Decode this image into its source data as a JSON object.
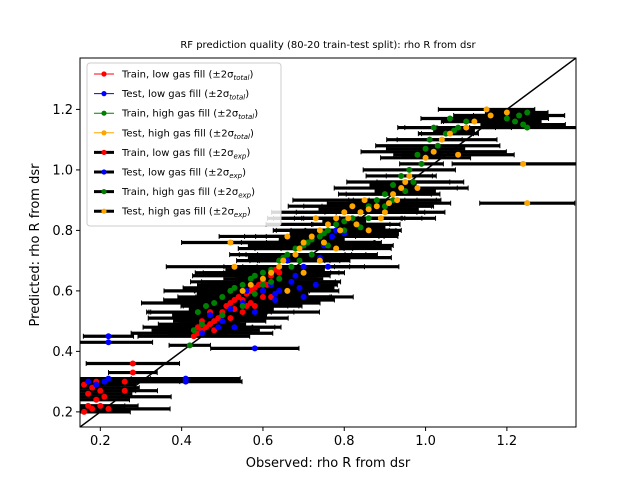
{
  "chart_data": {
    "type": "scatter",
    "title": "RF prediction quality (80-20 train-test split): rho R from dsr",
    "xlabel": "Observed: rho R from dsr",
    "ylabel": "Predicted: rho R from dsr",
    "xlim": [
      0.15,
      1.37
    ],
    "ylim": [
      0.15,
      1.37
    ],
    "xticks": [
      "0.2",
      "0.4",
      "0.6",
      "0.8",
      "1.0",
      "1.2"
    ],
    "yticks": [
      "0.2",
      "0.4",
      "0.6",
      "0.8",
      "1.0",
      "1.2"
    ],
    "grid": false,
    "legend_position": "upper-left",
    "identity_line": true,
    "colors": {
      "train_low": "#ff0000",
      "test_low": "#0000ff",
      "train_high": "#008000",
      "test_high": "#ffa500",
      "error_bar": "#000000",
      "identity": "#000000"
    },
    "legend": [
      {
        "label": "Train, low gas fill (±2σtotal)",
        "base": "Train, low gas fill (±2σ",
        "sub": "total",
        "close": ")",
        "color": "#ff0000",
        "kind": "total"
      },
      {
        "label": "Test, low gas fill (±2σtotal)",
        "base": "Test, low gas fill (±2σ",
        "sub": "total",
        "close": ")",
        "color": "#0000ff",
        "kind": "total"
      },
      {
        "label": "Train, high gas fill (±2σtotal)",
        "base": "Train, high gas fill (±2σ",
        "sub": "total",
        "close": ")",
        "color": "#008000",
        "kind": "total"
      },
      {
        "label": "Test, high gas fill (±2σtotal)",
        "base": "Test, high gas fill (±2σ",
        "sub": "total",
        "close": ")",
        "color": "#ffa500",
        "kind": "total"
      },
      {
        "label": "Train, low gas fill (±2σexp)",
        "base": "Train, low gas fill (±2σ",
        "sub": "exp",
        "close": ")",
        "color": "#ff0000",
        "kind": "exp"
      },
      {
        "label": "Test, low gas fill (±2σexp)",
        "base": "Test, low gas fill (±2σ",
        "sub": "exp",
        "close": ")",
        "color": "#0000ff",
        "kind": "exp"
      },
      {
        "label": "Train, high gas fill (±2σexp)",
        "base": "Train, high gas fill (±2σ",
        "sub": "exp",
        "close": ")",
        "color": "#008000",
        "kind": "exp"
      },
      {
        "label": "Test, high gas fill (±2σexp)",
        "base": "Test, high gas fill (±2σ",
        "sub": "exp",
        "close": ")",
        "color": "#ffa500",
        "kind": "exp"
      }
    ],
    "series": [
      {
        "name": "Train, low gas fill",
        "color": "#ff0000",
        "points": [
          [
            0.16,
            0.2
          ],
          [
            0.17,
            0.22
          ],
          [
            0.18,
            0.21
          ],
          [
            0.19,
            0.24
          ],
          [
            0.17,
            0.26
          ],
          [
            0.18,
            0.28
          ],
          [
            0.2,
            0.22
          ],
          [
            0.21,
            0.25
          ],
          [
            0.16,
            0.29
          ],
          [
            0.19,
            0.3
          ],
          [
            0.2,
            0.27
          ],
          [
            0.22,
            0.21
          ],
          [
            0.26,
            0.3
          ],
          [
            0.28,
            0.33
          ],
          [
            0.28,
            0.36
          ],
          [
            0.26,
            0.27
          ],
          [
            0.43,
            0.45
          ],
          [
            0.44,
            0.46
          ],
          [
            0.45,
            0.47
          ],
          [
            0.46,
            0.48
          ],
          [
            0.47,
            0.49
          ],
          [
            0.48,
            0.5
          ],
          [
            0.49,
            0.51
          ],
          [
            0.5,
            0.53
          ],
          [
            0.51,
            0.55
          ],
          [
            0.52,
            0.56
          ],
          [
            0.53,
            0.57
          ],
          [
            0.54,
            0.58
          ],
          [
            0.55,
            0.57
          ],
          [
            0.56,
            0.59
          ],
          [
            0.57,
            0.6
          ],
          [
            0.58,
            0.61
          ],
          [
            0.59,
            0.62
          ],
          [
            0.6,
            0.63
          ],
          [
            0.61,
            0.62
          ],
          [
            0.62,
            0.65
          ],
          [
            0.63,
            0.67
          ],
          [
            0.64,
            0.66
          ],
          [
            0.45,
            0.5
          ],
          [
            0.47,
            0.53
          ],
          [
            0.5,
            0.52
          ],
          [
            0.53,
            0.54
          ],
          [
            0.55,
            0.53
          ],
          [
            0.57,
            0.56
          ],
          [
            0.58,
            0.55
          ],
          [
            0.6,
            0.58
          ],
          [
            0.48,
            0.47
          ],
          [
            0.52,
            0.51
          ],
          [
            0.56,
            0.55
          ],
          [
            0.6,
            0.6
          ],
          [
            0.62,
            0.58
          ],
          [
            0.44,
            0.48
          ]
        ]
      },
      {
        "name": "Test, low gas fill",
        "color": "#0000ff",
        "points": [
          [
            0.17,
            0.3
          ],
          [
            0.21,
            0.3
          ],
          [
            0.22,
            0.43
          ],
          [
            0.22,
            0.45
          ],
          [
            0.19,
            0.29
          ],
          [
            0.22,
            0.31
          ],
          [
            0.41,
            0.3
          ],
          [
            0.41,
            0.31
          ],
          [
            0.45,
            0.46
          ],
          [
            0.47,
            0.52
          ],
          [
            0.5,
            0.5
          ],
          [
            0.53,
            0.48
          ],
          [
            0.55,
            0.56
          ],
          [
            0.58,
            0.53
          ],
          [
            0.58,
            0.41
          ],
          [
            0.6,
            0.6
          ],
          [
            0.62,
            0.62
          ],
          [
            0.63,
            0.59
          ],
          [
            0.64,
            0.6
          ],
          [
            0.67,
            0.63
          ],
          [
            0.68,
            0.65
          ],
          [
            0.7,
            0.68
          ],
          [
            0.72,
            0.72
          ],
          [
            0.74,
            0.71
          ],
          [
            0.75,
            0.75
          ],
          [
            0.77,
            0.78
          ],
          [
            0.78,
            0.8
          ],
          [
            0.8,
            0.79
          ],
          [
            0.7,
            0.58
          ],
          [
            0.73,
            0.62
          ],
          [
            0.66,
            0.7
          ],
          [
            0.6,
            0.66
          ],
          [
            0.56,
            0.6
          ],
          [
            0.52,
            0.54
          ],
          [
            0.49,
            0.48
          ],
          [
            0.63,
            0.57
          ],
          [
            0.69,
            0.61
          ],
          [
            0.76,
            0.68
          ]
        ]
      },
      {
        "name": "Train, high gas fill",
        "color": "#008000",
        "points": [
          [
            0.42,
            0.42
          ],
          [
            0.43,
            0.47
          ],
          [
            0.44,
            0.53
          ],
          [
            0.45,
            0.49
          ],
          [
            0.46,
            0.55
          ],
          [
            0.48,
            0.56
          ],
          [
            0.5,
            0.58
          ],
          [
            0.52,
            0.6
          ],
          [
            0.53,
            0.61
          ],
          [
            0.55,
            0.62
          ],
          [
            0.57,
            0.64
          ],
          [
            0.58,
            0.65
          ],
          [
            0.6,
            0.66
          ],
          [
            0.62,
            0.67
          ],
          [
            0.64,
            0.7
          ],
          [
            0.65,
            0.71
          ],
          [
            0.66,
            0.72
          ],
          [
            0.68,
            0.74
          ],
          [
            0.7,
            0.75
          ],
          [
            0.71,
            0.76
          ],
          [
            0.72,
            0.77
          ],
          [
            0.74,
            0.78
          ],
          [
            0.75,
            0.79
          ],
          [
            0.76,
            0.8
          ],
          [
            0.78,
            0.82
          ],
          [
            0.8,
            0.83
          ],
          [
            0.82,
            0.84
          ],
          [
            0.84,
            0.86
          ],
          [
            0.86,
            0.88
          ],
          [
            0.88,
            0.9
          ],
          [
            0.9,
            0.92
          ],
          [
            0.92,
            0.95
          ],
          [
            0.94,
            0.98
          ],
          [
            0.96,
            1.0
          ],
          [
            0.98,
            1.05
          ],
          [
            1.0,
            1.07
          ],
          [
            1.01,
            1.1
          ],
          [
            1.02,
            1.14
          ],
          [
            1.03,
            1.08
          ],
          [
            1.05,
            1.12
          ],
          [
            1.06,
            1.17
          ],
          [
            1.07,
            1.13
          ],
          [
            1.08,
            1.14
          ],
          [
            1.1,
            1.16
          ],
          [
            1.2,
            1.17
          ],
          [
            1.22,
            1.16
          ],
          [
            1.23,
            1.18
          ],
          [
            1.24,
            1.15
          ],
          [
            1.25,
            1.19
          ],
          [
            1.25,
            1.14
          ],
          [
            0.5,
            0.52
          ],
          [
            0.55,
            0.55
          ],
          [
            0.58,
            0.59
          ],
          [
            0.62,
            0.63
          ],
          [
            0.67,
            0.68
          ],
          [
            0.72,
            0.72
          ],
          [
            0.76,
            0.75
          ],
          [
            0.8,
            0.8
          ],
          [
            0.84,
            0.81
          ],
          [
            0.86,
            0.84
          ],
          [
            0.9,
            0.88
          ],
          [
            0.92,
            0.9
          ],
          [
            0.95,
            0.93
          ],
          [
            0.97,
            0.96
          ],
          [
            0.99,
            1.02
          ],
          [
            0.6,
            0.62
          ],
          [
            0.64,
            0.64
          ],
          [
            0.69,
            0.7
          ]
        ]
      },
      {
        "name": "Test, high gas fill",
        "color": "#ffa500",
        "points": [
          [
            0.52,
            0.76
          ],
          [
            0.53,
            0.68
          ],
          [
            0.55,
            0.6
          ],
          [
            0.57,
            0.62
          ],
          [
            0.6,
            0.64
          ],
          [
            0.62,
            0.66
          ],
          [
            0.64,
            0.68
          ],
          [
            0.65,
            0.7
          ],
          [
            0.66,
            0.78
          ],
          [
            0.68,
            0.72
          ],
          [
            0.69,
            0.74
          ],
          [
            0.7,
            0.76
          ],
          [
            0.72,
            0.78
          ],
          [
            0.73,
            0.84
          ],
          [
            0.74,
            0.8
          ],
          [
            0.75,
            0.76
          ],
          [
            0.76,
            0.82
          ],
          [
            0.78,
            0.84
          ],
          [
            0.79,
            0.8
          ],
          [
            0.8,
            0.86
          ],
          [
            0.81,
            0.84
          ],
          [
            0.82,
            0.88
          ],
          [
            0.83,
            0.82
          ],
          [
            0.84,
            0.86
          ],
          [
            0.85,
            0.9
          ],
          [
            0.86,
            0.87
          ],
          [
            0.88,
            0.88
          ],
          [
            0.89,
            0.84
          ],
          [
            0.9,
            0.86
          ],
          [
            0.91,
            0.89
          ],
          [
            0.92,
            0.92
          ],
          [
            0.93,
            0.9
          ],
          [
            0.94,
            0.94
          ],
          [
            0.95,
            0.96
          ],
          [
            0.96,
            0.98
          ],
          [
            0.98,
            0.94
          ],
          [
            1.0,
            1.04
          ],
          [
            1.02,
            1.06
          ],
          [
            1.04,
            1.1
          ],
          [
            1.06,
            1.12
          ],
          [
            1.08,
            1.05
          ],
          [
            1.1,
            1.14
          ],
          [
            1.12,
            1.16
          ],
          [
            1.15,
            1.2
          ],
          [
            1.16,
            1.18
          ],
          [
            1.2,
            1.19
          ],
          [
            1.24,
            1.02
          ],
          [
            1.25,
            0.89
          ],
          [
            0.66,
            0.6
          ],
          [
            0.7,
            0.66
          ],
          [
            0.74,
            0.7
          ],
          [
            0.78,
            0.74
          ],
          [
            0.86,
            0.8
          ]
        ]
      }
    ]
  }
}
